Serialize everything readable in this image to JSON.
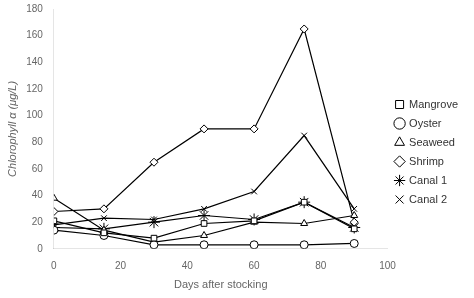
{
  "chart_data": {
    "type": "line",
    "x_label": "Days after stocking",
    "y_label": "Chlorophyll α (μg/L)",
    "x": [
      0,
      15,
      30,
      45,
      60,
      75,
      90
    ],
    "series": [
      {
        "name": "Mangrove",
        "color": "black",
        "marker": "square",
        "line_style": "solid",
        "values": [
          21,
          12,
          8,
          19,
          21,
          35,
          15
        ]
      },
      {
        "name": "Oyster",
        "color": "black",
        "marker": "circle",
        "line_style": "solid",
        "values": [
          14,
          10,
          3,
          3,
          3,
          3,
          4
        ]
      },
      {
        "name": "Seaweed",
        "color": "black",
        "marker": "triangle",
        "line_style": "solid",
        "values": [
          38,
          14,
          5,
          10,
          20,
          19,
          25
        ]
      },
      {
        "name": "Shrimp",
        "color": "black",
        "marker": "diamond",
        "line_style": "solid",
        "values": [
          28,
          30,
          65,
          90,
          90,
          165,
          20
        ]
      },
      {
        "name": "Canal 1",
        "color": "black",
        "marker": "star",
        "line_style": "solid",
        "values": [
          16,
          15,
          20,
          25,
          22,
          35,
          16
        ]
      },
      {
        "name": "Canal 2",
        "color": "black",
        "marker": "cross",
        "line_style": "solid",
        "values": [
          18,
          23,
          22,
          30,
          43,
          85,
          30
        ]
      }
    ],
    "xlim": [
      0,
      100
    ],
    "ylim": [
      0,
      180
    ],
    "xticks": [
      0,
      20,
      40,
      60,
      80,
      100
    ],
    "yticks": [
      0,
      20,
      40,
      60,
      80,
      100,
      120,
      140,
      160,
      180
    ],
    "grid": false,
    "legend": "right"
  }
}
